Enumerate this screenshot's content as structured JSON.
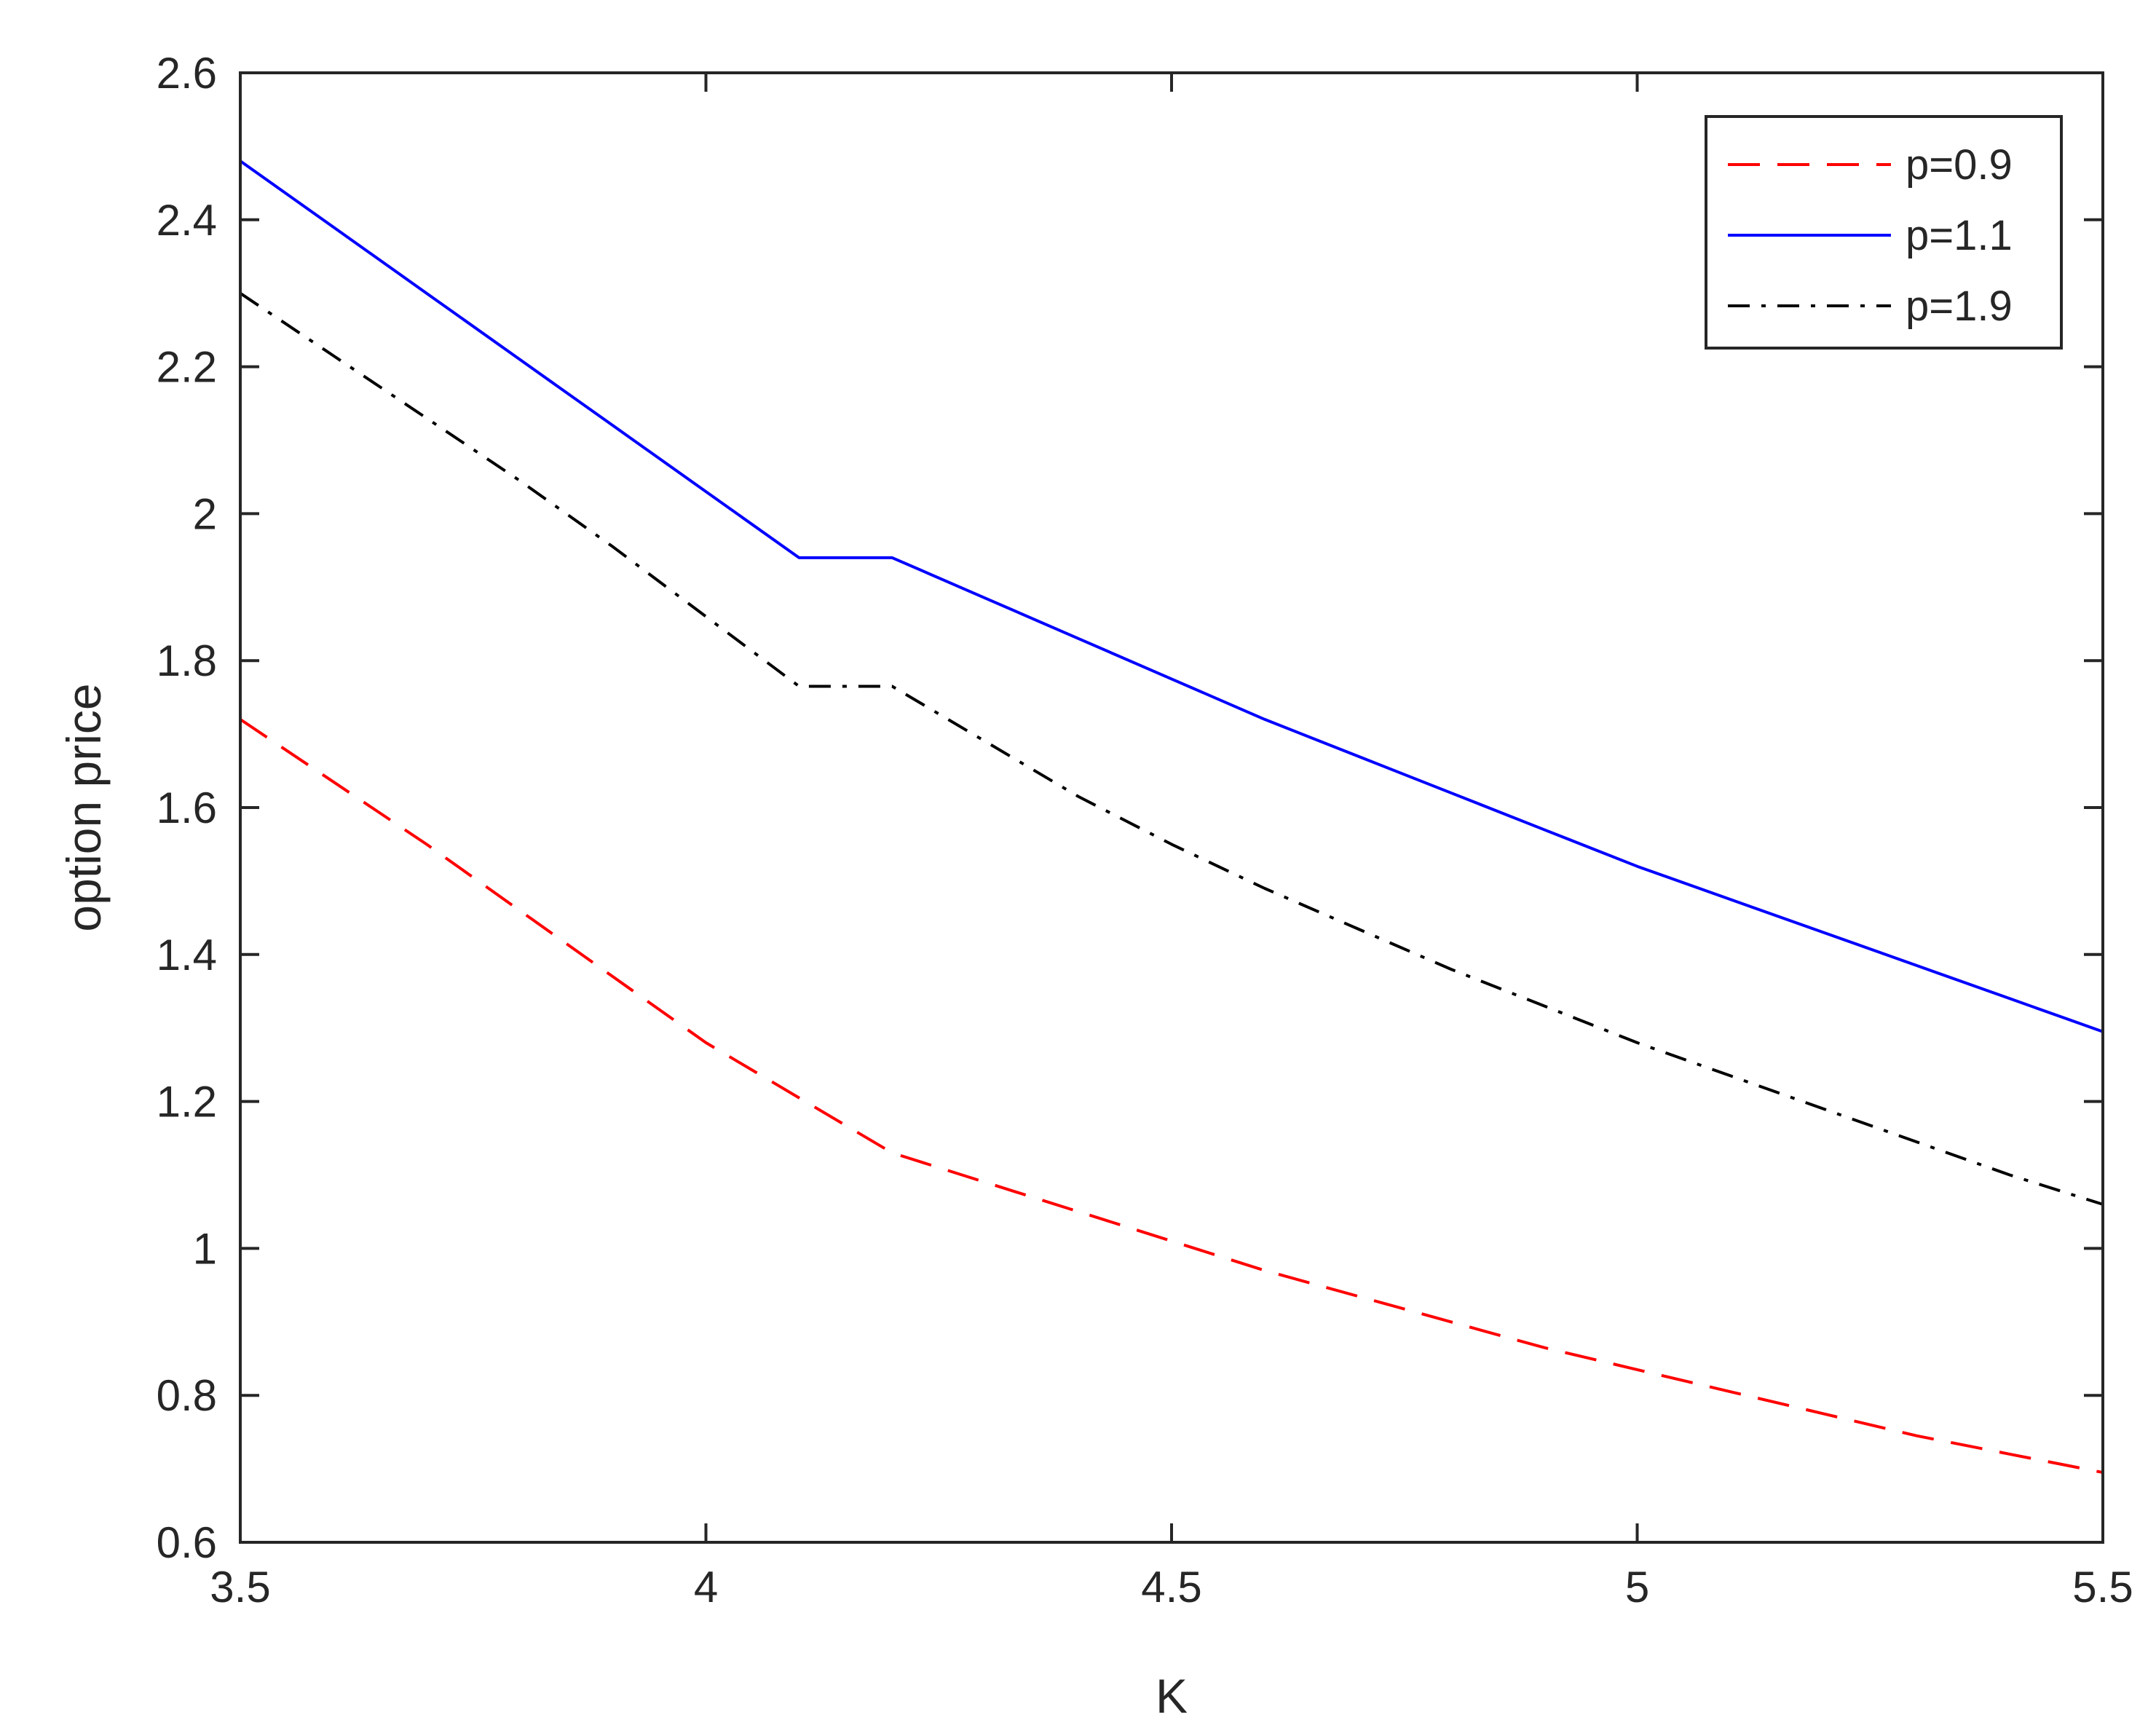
{
  "chart_data": {
    "type": "line",
    "title": "",
    "xlabel": "K",
    "ylabel": "option price",
    "xlim": [
      3.5,
      5.5
    ],
    "ylim": [
      0.6,
      2.6
    ],
    "xticks": [
      3.5,
      4,
      4.5,
      5,
      5.5
    ],
    "xtick_labels": [
      "3.5",
      "4",
      "4.5",
      "5",
      "5.5"
    ],
    "yticks": [
      0.6,
      0.8,
      1.0,
      1.2,
      1.4,
      1.6,
      1.8,
      2.0,
      2.2,
      2.4,
      2.6
    ],
    "ytick_labels": [
      "0.6",
      "0.8",
      "1",
      "1.2",
      "1.4",
      "1.6",
      "1.8",
      "2",
      "2.2",
      "2.4",
      "2.6"
    ],
    "grid": false,
    "legend_position": "top-right",
    "x": [
      3.5,
      3.6,
      3.7,
      3.8,
      3.9,
      4.0,
      4.1,
      4.2,
      4.3,
      4.4,
      4.5,
      4.6,
      4.7,
      4.8,
      4.9,
      5.0,
      5.1,
      5.2,
      5.3,
      5.4,
      5.5
    ],
    "series": [
      {
        "name": "p=0.9",
        "color": "#ff0000",
        "style": "dashed",
        "values": [
          1.72,
          1.635,
          1.55,
          1.46,
          1.37,
          1.28,
          1.205,
          1.13,
          1.09,
          1.05,
          1.01,
          0.97,
          0.935,
          0.9,
          0.865,
          0.835,
          0.805,
          0.775,
          0.745,
          0.72,
          0.695
        ]
      },
      {
        "name": "p=1.1",
        "color": "#0000ff",
        "style": "solid",
        "values": [
          2.48,
          2.39,
          2.3,
          2.21,
          2.12,
          2.03,
          1.94,
          1.94,
          1.885,
          1.83,
          1.775,
          1.72,
          1.67,
          1.62,
          1.57,
          1.52,
          1.475,
          1.43,
          1.385,
          1.34,
          1.295
        ]
      },
      {
        "name": "p=1.9",
        "color": "#000000",
        "style": "dashdot",
        "values": [
          2.3,
          2.215,
          2.13,
          2.045,
          1.955,
          1.86,
          1.765,
          1.765,
          1.69,
          1.615,
          1.55,
          1.49,
          1.435,
          1.38,
          1.33,
          1.28,
          1.235,
          1.19,
          1.145,
          1.1,
          1.06
        ]
      }
    ]
  }
}
